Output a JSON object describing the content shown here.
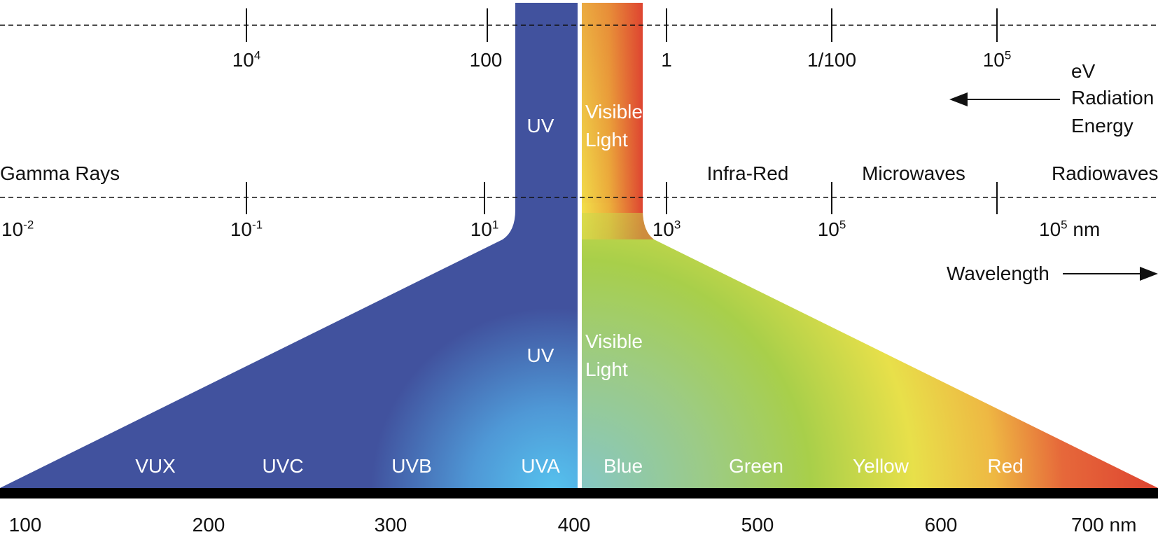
{
  "energy_axis": {
    "ticks": [
      {
        "base": "10",
        "sup": "4"
      },
      {
        "base": "100",
        "sup": ""
      },
      {
        "base": "1",
        "sup": ""
      },
      {
        "base": "1/100",
        "sup": ""
      },
      {
        "base": "10",
        "sup": "5"
      }
    ],
    "unit_label": "eV",
    "title_line1": "Radiation",
    "title_line2": "Energy"
  },
  "regions": {
    "gamma": "Gamma Rays",
    "infrared": "Infra-Red",
    "microwaves": "Microwaves",
    "radiowaves": "Radiowaves"
  },
  "wavelength_axis": {
    "ticks": [
      {
        "base": "10",
        "sup": "-2",
        "suffix": ""
      },
      {
        "base": "10",
        "sup": "-1",
        "suffix": ""
      },
      {
        "base": "10",
        "sup": "1",
        "suffix": ""
      },
      {
        "base": "10",
        "sup": "3",
        "suffix": ""
      },
      {
        "base": "10",
        "sup": "5",
        "suffix": ""
      },
      {
        "base": "10",
        "sup": "5",
        "suffix": " nm"
      }
    ],
    "title": "Wavelength"
  },
  "band": {
    "uv_label": "UV",
    "visible_line1": "Visible",
    "visible_line2": "Light"
  },
  "bottom_bands": [
    "VUX",
    "UVC",
    "UVB",
    "UVA",
    "Blue",
    "Green",
    "Yellow",
    "Red"
  ],
  "nm_axis": [
    "100",
    "200",
    "300",
    "400",
    "500",
    "600",
    "700 nm"
  ],
  "colors": {
    "uv_blue": "#41529e",
    "uva_cyan": "#56c2ee",
    "visible_teal": "#86c7c4",
    "green": "#a6cd4b",
    "yellow": "#ede04a",
    "orange": "#ec8a37",
    "red": "#de4531",
    "axis_black": "#000000"
  }
}
